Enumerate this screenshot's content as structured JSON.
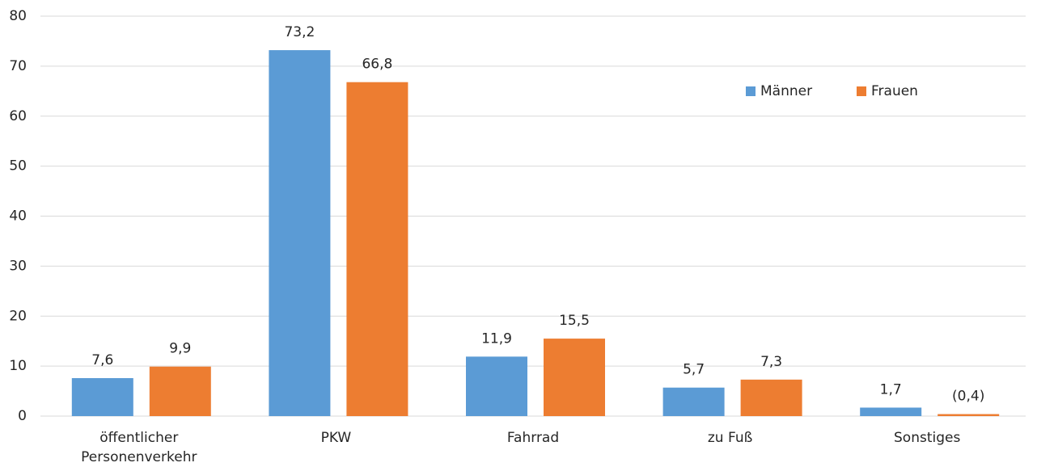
{
  "chart_data": {
    "type": "bar",
    "categories": [
      "öffentlicher Personenverkehr",
      "PKW",
      "Fahrrad",
      "zu Fuß",
      "Sonstiges"
    ],
    "series": [
      {
        "name": "Männer",
        "color": "#5b9bd5",
        "values": [
          7.6,
          73.2,
          11.9,
          5.7,
          1.7
        ],
        "value_labels": [
          "7,6",
          "73,2",
          "11,9",
          "5,7",
          "1,7"
        ]
      },
      {
        "name": "Frauen",
        "color": "#ed7d31",
        "values": [
          9.9,
          66.8,
          15.5,
          7.3,
          0.4
        ],
        "value_labels": [
          "9,9",
          "66,8",
          "15,5",
          "7,3",
          "(0,4)"
        ]
      }
    ],
    "ylim": [
      0,
      80
    ],
    "yticks": [
      0,
      10,
      20,
      30,
      40,
      50,
      60,
      70,
      80
    ],
    "grid": true,
    "legend": "upper right"
  }
}
